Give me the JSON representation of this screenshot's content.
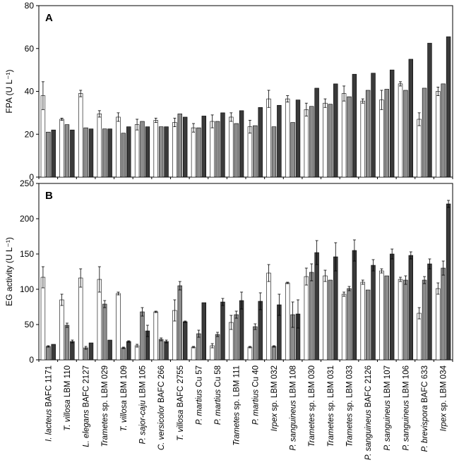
{
  "chart_data": [
    {
      "type": "bar",
      "panel_label": "A",
      "ylabel": "FPA (U L⁻¹)",
      "ylim": [
        0,
        80
      ],
      "yticks": [
        0,
        20,
        40,
        60,
        80
      ],
      "series_colors": [
        "#ffffff",
        "#8c8c8c",
        "#3a3a3a"
      ],
      "categories": [
        "I. lacteus BAFC 1171",
        "T. villosa LBM 110",
        "L. elegans BAFC 2127",
        "Trametes sp. LBM 029",
        "T. villosa LBM 109",
        "P. sajor-caju LBM 105",
        "C. versicolor BAFC 266",
        "T. villosa BAFC 2755",
        "P. martius Cu 57",
        "P. martius Cu 58",
        "Trametes sp. LBM 111",
        "P. martius Cu 40",
        "Irpex sp. LBM 032",
        "P. sanguineus LBM 108",
        "Trametes sp. LBM 030",
        "Trametes sp. LBM 031",
        "Trametes sp. LBM 033",
        "P. sanguineus BAFC 2126",
        "P. sanguineus LBM 107",
        "P. sanguineus LBM 106",
        "P. brevispora BAFC 633",
        "Irpex sp. LBM 034"
      ],
      "series": [
        {
          "values": [
            38,
            27,
            39,
            29.5,
            28,
            24.5,
            26.5,
            25.5,
            23,
            26,
            28,
            23.5,
            36.5,
            36.5,
            31.5,
            34.5,
            39,
            35.5,
            36,
            43.5,
            27,
            40
          ],
          "errors": [
            6.5,
            0.5,
            1.5,
            1.5,
            2,
            2.5,
            1,
            2,
            2,
            3,
            2,
            3,
            4,
            1.5,
            3,
            2,
            3.5,
            1,
            4.5,
            1,
            3,
            2
          ]
        },
        {
          "values": [
            21,
            24.5,
            23,
            22.5,
            20.5,
            26,
            23.5,
            29.5,
            23,
            26,
            25,
            24,
            23.5,
            25.5,
            33,
            34,
            37.5,
            40.5,
            41,
            40.5,
            41.5,
            43.5
          ]
        },
        {
          "values": [
            22,
            22,
            22.5,
            22.5,
            23.5,
            23.5,
            23.5,
            28,
            28.5,
            30,
            31,
            32.5,
            33.5,
            36,
            41.5,
            43.5,
            48,
            48.5,
            50,
            55,
            62.5,
            65.5
          ]
        }
      ]
    },
    {
      "type": "bar",
      "panel_label": "B",
      "ylabel": "EG activity (U L⁻¹)",
      "ylim": [
        0,
        250
      ],
      "yticks": [
        0,
        50,
        100,
        150,
        200,
        250
      ],
      "series_colors": [
        "#ffffff",
        "#8c8c8c",
        "#3a3a3a"
      ],
      "categories": [
        "I. lacteus BAFC 1171",
        "T. villosa LBM 110",
        "L. elegans BAFC 2127",
        "Trametes sp. LBM 029",
        "T. villosa LBM 109",
        "P. sajor-caju LBM 105",
        "C. versicolor BAFC 266",
        "T. villosa BAFC 2755",
        "P. martius Cu 57",
        "P. martius Cu 58",
        "Trametes sp. LBM 111",
        "P. martius Cu 40",
        "Irpex sp. LBM 032",
        "P. sanguineus LBM 108",
        "Trametes sp. LBM 030",
        "Trametes sp. LBM 031",
        "Trametes sp. LBM 033",
        "P. sanguineus BAFC 2126",
        "P. sanguineus LBM 107",
        "P. sanguineus LBM 106",
        "P. brevispora BAFC 633",
        "Irpex sp. LBM 034"
      ],
      "series": [
        {
          "values": [
            117,
            85,
            116,
            114,
            94,
            20,
            68,
            70,
            18,
            20,
            53,
            18,
            123,
            109,
            118,
            119,
            93,
            110,
            126,
            114,
            66,
            101
          ],
          "errors": [
            15,
            8,
            13,
            18,
            2,
            2,
            1,
            15,
            1,
            3,
            10,
            1,
            12,
            1,
            12,
            8,
            3,
            3,
            3,
            3,
            8,
            8
          ]
        },
        {
          "values": [
            19,
            49,
            17,
            79,
            17,
            68,
            29,
            105,
            37,
            36,
            64,
            47,
            19,
            64,
            124,
            113,
            101,
            99,
            119,
            113,
            113,
            130
          ],
          "errors": [
            1,
            3,
            2,
            5,
            1,
            6,
            2,
            6,
            5,
            3,
            5,
            4,
            1,
            18,
            12,
            0,
            3,
            0,
            0,
            6,
            5,
            10
          ]
        },
        {
          "values": [
            22,
            26,
            24,
            28,
            26,
            41,
            26,
            54,
            81,
            82,
            84,
            83,
            78,
            65,
            152,
            146,
            155,
            134,
            150,
            148,
            136,
            221
          ],
          "errors": [
            0,
            2,
            0,
            0,
            1,
            8,
            2,
            1,
            0,
            5,
            12,
            12,
            15,
            20,
            17,
            20,
            15,
            8,
            7,
            5,
            7,
            5
          ]
        }
      ]
    }
  ],
  "x_tick_labels": [
    {
      "italic": "I. lacteus",
      "plain": " BAFC 1171"
    },
    {
      "italic": "T. villosa",
      "plain": " LBM 110"
    },
    {
      "italic": "L. elegans",
      "plain": " BAFC 2127"
    },
    {
      "italic": "Trametes",
      "plain": " sp. LBM 029"
    },
    {
      "italic": "T. villosa",
      "plain": " LBM 109"
    },
    {
      "italic": "P. sajor-caju",
      "plain": " LBM 105"
    },
    {
      "italic": "C. versicolor",
      "plain": " BAFC 266"
    },
    {
      "italic": "T. villosa",
      "plain": " BAFC 2755"
    },
    {
      "italic": "P. martius",
      "plain": " Cu 57"
    },
    {
      "italic": "P. martius",
      "plain": " Cu 58"
    },
    {
      "italic": "Trametes",
      "plain": " sp. LBM 111"
    },
    {
      "italic": "P. martius",
      "plain": " Cu 40"
    },
    {
      "italic": "Irpex",
      "plain": " sp. LBM 032"
    },
    {
      "italic": "P. sanguineus",
      "plain": " LBM 108"
    },
    {
      "italic": "Trametes",
      "plain": " sp. LBM 030"
    },
    {
      "italic": "Trametes",
      "plain": " sp. LBM 031"
    },
    {
      "italic": "Trametes",
      "plain": " sp. LBM 033"
    },
    {
      "italic": "P. sanguineus",
      "plain": " BAFC 2126"
    },
    {
      "italic": "P. sanguineus",
      "plain": " LBM 107"
    },
    {
      "italic": "P. sanguineus",
      "plain": " LBM 106"
    },
    {
      "italic": "P. brevispora",
      "plain": " BAFC 633"
    },
    {
      "italic": "Irpex",
      "plain": " sp. LBM 034"
    }
  ]
}
